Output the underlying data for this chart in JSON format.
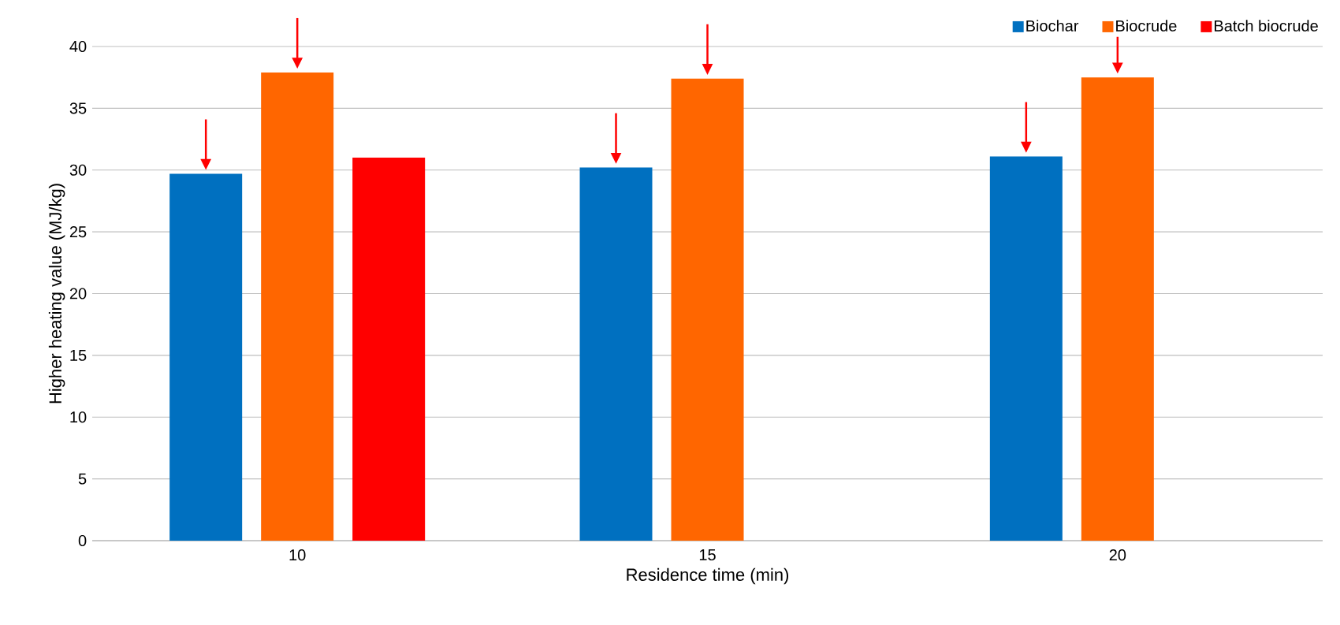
{
  "chart_data": {
    "type": "bar",
    "xlabel": "Residence time (min)",
    "ylabel": "Higher heating value (MJ/kg)",
    "categories": [
      "10",
      "15",
      "20"
    ],
    "series": [
      {
        "name": "Biochar",
        "color": "#0070c0",
        "values": [
          29.7,
          30.2,
          31.1
        ]
      },
      {
        "name": "Biocrude",
        "color": "#ff6600",
        "values": [
          37.9,
          37.4,
          37.5
        ]
      },
      {
        "name": "Batch biocrude",
        "color": "#ff0000",
        "values": [
          31.0,
          null,
          null
        ]
      }
    ],
    "ylim": [
      0,
      40
    ],
    "yticks": [
      0,
      5,
      10,
      15,
      20,
      25,
      30,
      35,
      40
    ],
    "grid": "y",
    "legend": "top right"
  }
}
